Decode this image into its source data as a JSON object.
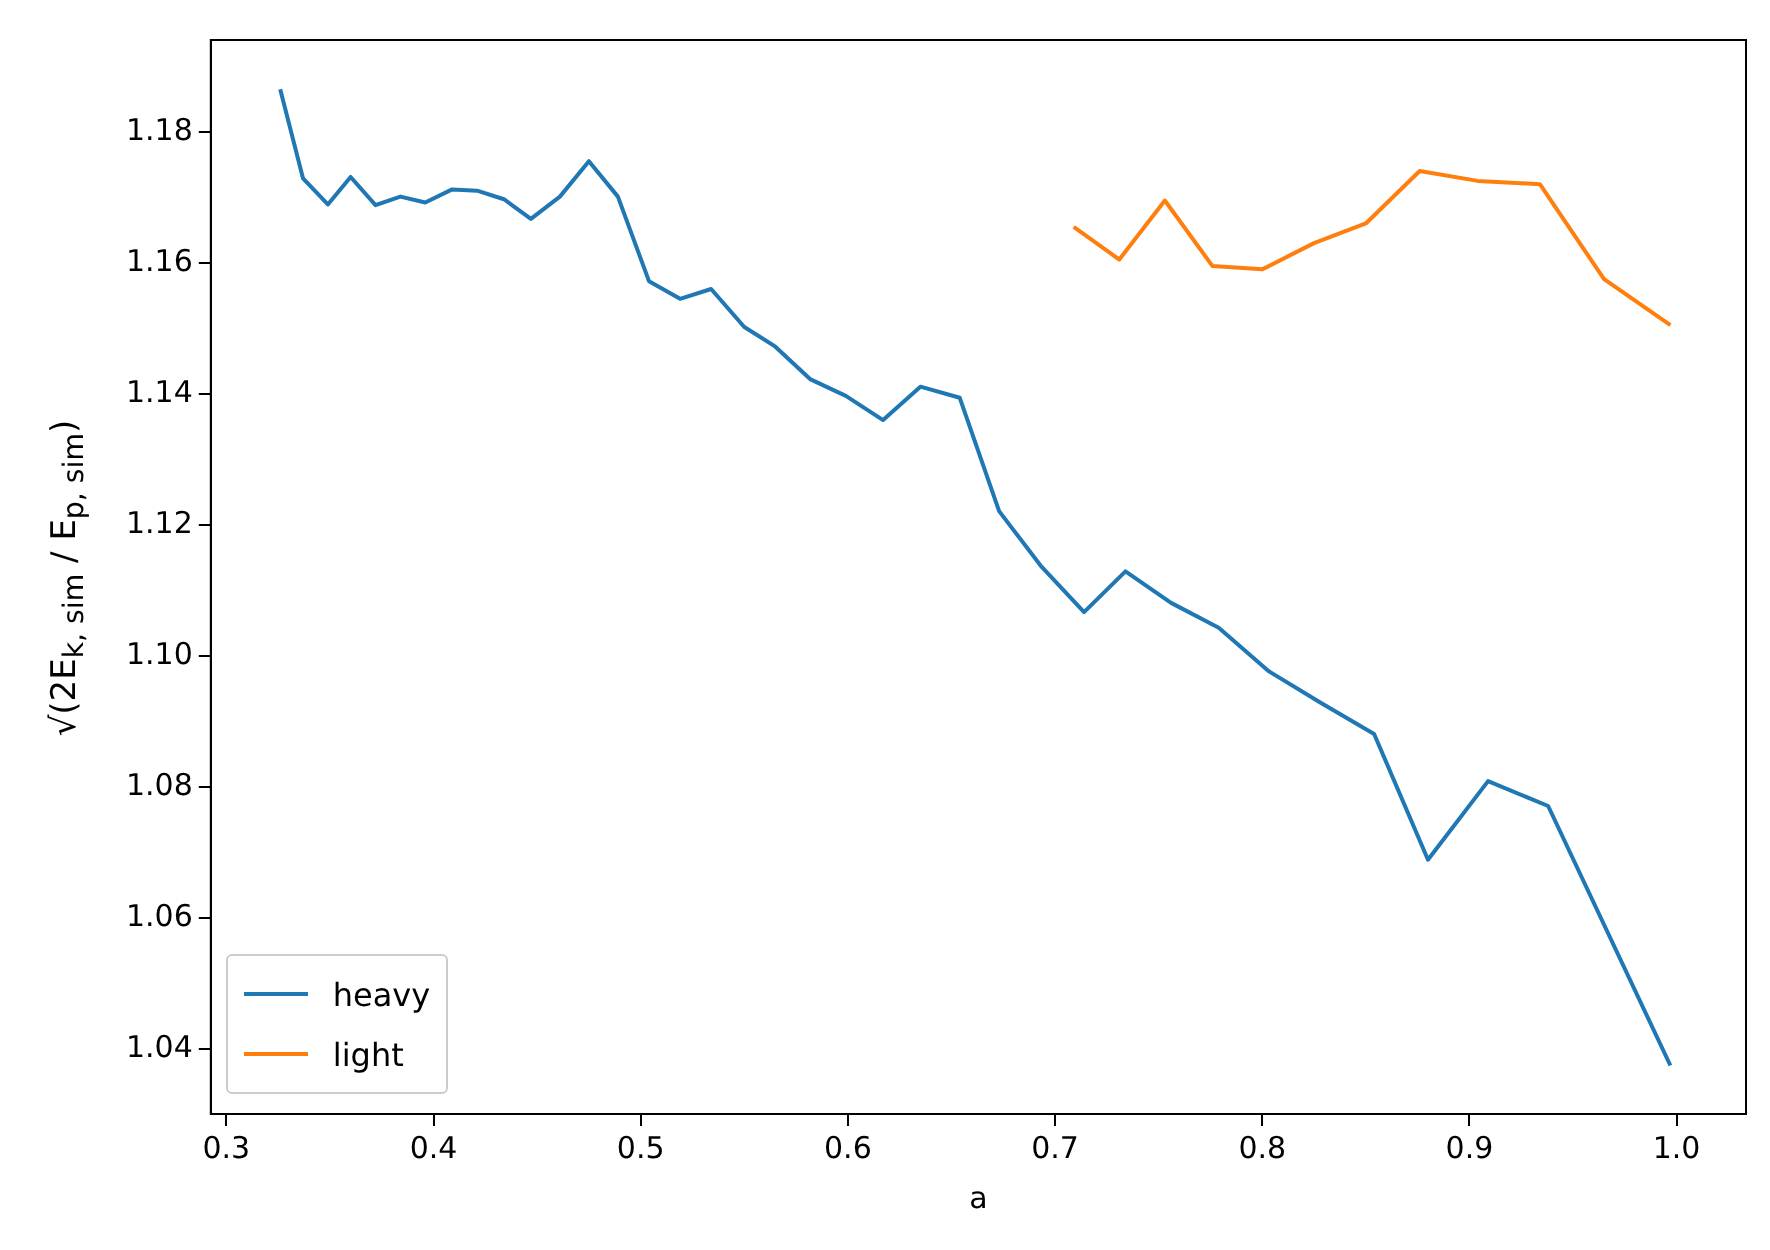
{
  "chart_data": {
    "type": "line",
    "xlabel": "a",
    "ylabel": "√(2E$_{k, sim}$ / E$_{p, sim}$)",
    "xlim": [
      0.2925,
      1.0335
    ],
    "xticks": [
      {
        "value": 0.3,
        "label": "0.3"
      },
      {
        "value": 0.4,
        "label": "0.4"
      },
      {
        "value": 0.5,
        "label": "0.5"
      },
      {
        "value": 0.6,
        "label": "0.6"
      },
      {
        "value": 0.7,
        "label": "0.7"
      },
      {
        "value": 0.8,
        "label": "0.8"
      },
      {
        "value": 0.9,
        "label": "0.9"
      },
      {
        "value": 1.0,
        "label": "1.0"
      }
    ],
    "ylim": [
      1.0301,
      1.194
    ],
    "yticks": [
      {
        "value": 1.04,
        "label": "1.04"
      },
      {
        "value": 1.06,
        "label": "1.06"
      },
      {
        "value": 1.08,
        "label": "1.08"
      },
      {
        "value": 1.1,
        "label": "1.10"
      },
      {
        "value": 1.12,
        "label": "1.12"
      },
      {
        "value": 1.14,
        "label": "1.14"
      },
      {
        "value": 1.16,
        "label": "1.16"
      },
      {
        "value": 1.18,
        "label": "1.18"
      }
    ],
    "grid": false,
    "legend": "bottom left",
    "marker": "none",
    "line_style": "solid",
    "series": [
      {
        "name": "heavy",
        "color": "#1f77b4",
        "x": [
          0.326,
          0.337,
          0.349,
          0.36,
          0.372,
          0.384,
          0.396,
          0.409,
          0.421,
          0.434,
          0.447,
          0.461,
          0.475,
          0.489,
          0.504,
          0.519,
          0.534,
          0.55,
          0.565,
          0.582,
          0.599,
          0.617,
          0.635,
          0.654,
          0.673,
          0.693,
          0.714,
          0.734,
          0.756,
          0.779,
          0.803,
          0.828,
          0.854,
          0.88,
          0.909,
          0.938,
          0.997
        ],
        "values": [
          1.1865,
          1.1729,
          1.1689,
          1.1731,
          1.1688,
          1.1701,
          1.1692,
          1.1712,
          1.171,
          1.1697,
          1.1667,
          1.1701,
          1.1755,
          1.1701,
          1.1572,
          1.1545,
          1.156,
          1.1502,
          1.1472,
          1.1422,
          1.1397,
          1.136,
          1.1411,
          1.1394,
          1.1221,
          1.1138,
          1.1067,
          1.1129,
          1.1081,
          1.1043,
          1.0977,
          1.0929,
          1.0881,
          1.0689,
          1.0809,
          1.0771,
          1.0375
        ]
      },
      {
        "name": "light",
        "color": "#ff7f0e",
        "x": [
          0.709,
          0.731,
          0.753,
          0.776,
          0.8,
          0.825,
          0.85,
          0.876,
          0.904,
          0.934,
          0.965,
          0.997
        ],
        "values": [
          1.1655,
          1.1605,
          1.1695,
          1.1595,
          1.159,
          1.163,
          1.166,
          1.174,
          1.1725,
          1.172,
          1.1575,
          1.1505
        ]
      }
    ]
  }
}
